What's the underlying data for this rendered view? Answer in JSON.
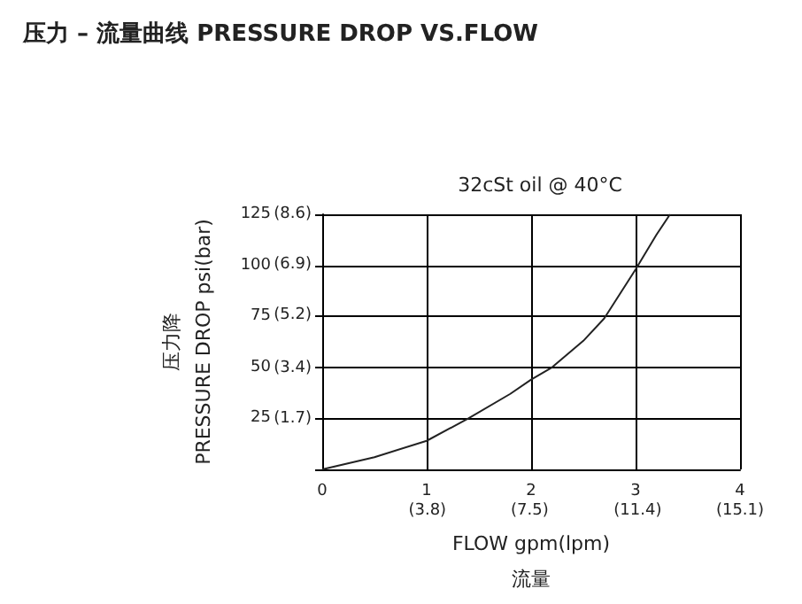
{
  "chart_data": {
    "type": "line",
    "title": "压力 – 流量曲线 PRESSURE DROP VS.FLOW",
    "subtitle": "32cSt oil @ 40°C",
    "xlabel": "FLOW gpm(lpm)\n流量",
    "ylabel": "压力降\nPRESSURE DROP psi(bar)",
    "x": [
      0,
      0.5,
      1,
      1.4,
      1.8,
      2,
      2.2,
      2.5,
      2.7,
      3,
      3.2,
      3.33
    ],
    "series": [
      {
        "color": "#222222",
        "values": [
          0,
          6,
          14,
          25,
          37,
          44,
          50,
          63,
          74,
          98,
          115,
          125
        ]
      }
    ],
    "xlim": [
      0,
      4
    ],
    "xticks": [
      0,
      1,
      2,
      3,
      4
    ],
    "x2lim": [
      0,
      15.1
    ],
    "x2ticks": [
      {
        "value": 3.8,
        "label": "(3.8)"
      },
      {
        "value": 7.5,
        "label": "(7.5)"
      },
      {
        "value": 11.4,
        "label": "(11.4)"
      },
      {
        "value": 15.1,
        "label": "(15.1)"
      }
    ],
    "ylim": [
      0,
      125
    ],
    "yticks": [
      {
        "value": 0,
        "label": null
      },
      25,
      50,
      75,
      100,
      125
    ],
    "y2lim": [
      0,
      8.6
    ],
    "y2ticks": [
      {
        "value": 1.7,
        "label": "(1.7)"
      },
      {
        "value": 3.4,
        "label": "(3.4)"
      },
      {
        "value": 5.2,
        "label": "(5.2)"
      },
      {
        "value": 6.9,
        "label": "(6.9)"
      },
      {
        "value": 8.6,
        "label": "(8.6)"
      }
    ],
    "grid": true,
    "marker": "none",
    "line_style": "solid"
  }
}
